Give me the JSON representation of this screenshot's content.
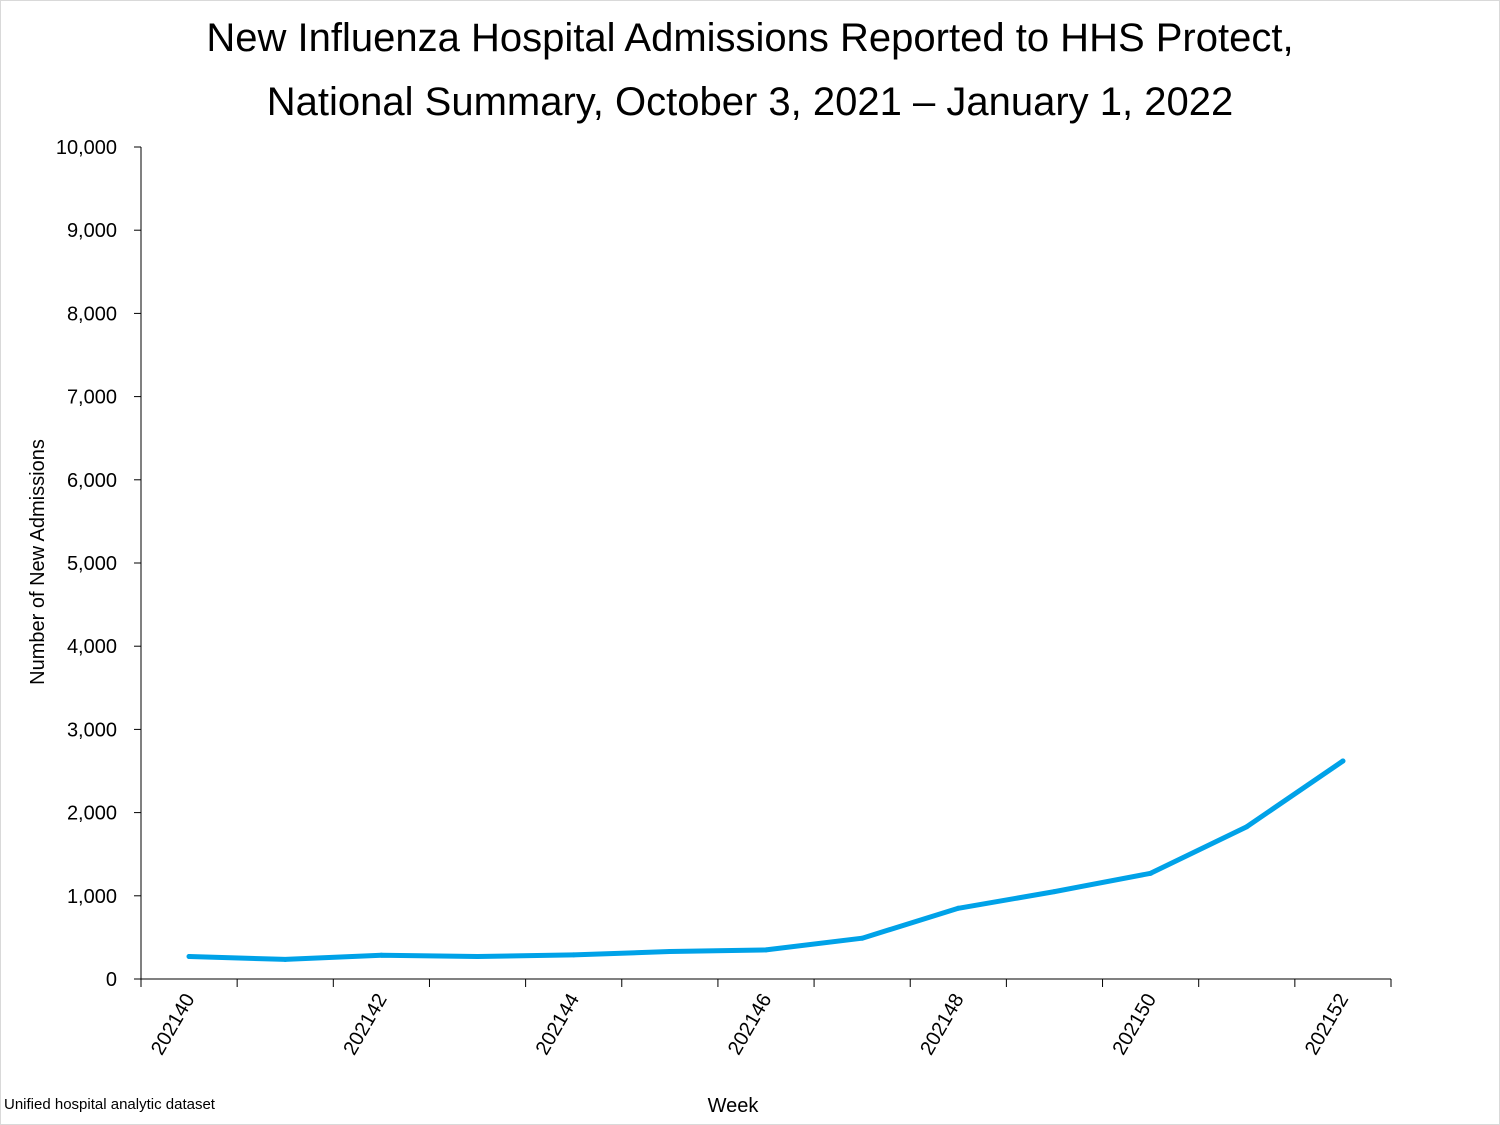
{
  "chart_data": {
    "type": "line",
    "title_lines": [
      "New Influenza Hospital Admissions Reported to HHS Protect,",
      "National Summary, October 3, 2021 – January 1, 2022"
    ],
    "xlabel": "Week",
    "ylabel": "Number of New Admissions",
    "ylim": [
      0,
      10000
    ],
    "yticks": [
      0,
      1000,
      2000,
      3000,
      4000,
      5000,
      6000,
      7000,
      8000,
      9000,
      10000
    ],
    "ytick_labels": [
      "0",
      "1,000",
      "2,000",
      "3,000",
      "4,000",
      "5,000",
      "6,000",
      "7,000",
      "8,000",
      "9,000",
      "10,000"
    ],
    "x": [
      "202140",
      "202141",
      "202142",
      "202143",
      "202144",
      "202145",
      "202146",
      "202147",
      "202148",
      "202149",
      "202150",
      "202151",
      "202152"
    ],
    "xtick_labels": [
      "202140",
      "",
      "202142",
      "",
      "202144",
      "",
      "202146",
      "",
      "202148",
      "",
      "202150",
      "",
      "202152"
    ],
    "series": [
      {
        "values": [
          270,
          235,
          285,
          270,
          290,
          330,
          350,
          490,
          850,
          1050,
          1270,
          1830,
          2620
        ]
      }
    ],
    "grid": false,
    "line_color": "#00a2e8"
  },
  "footer": {
    "source": "Unified hospital analytic dataset"
  }
}
